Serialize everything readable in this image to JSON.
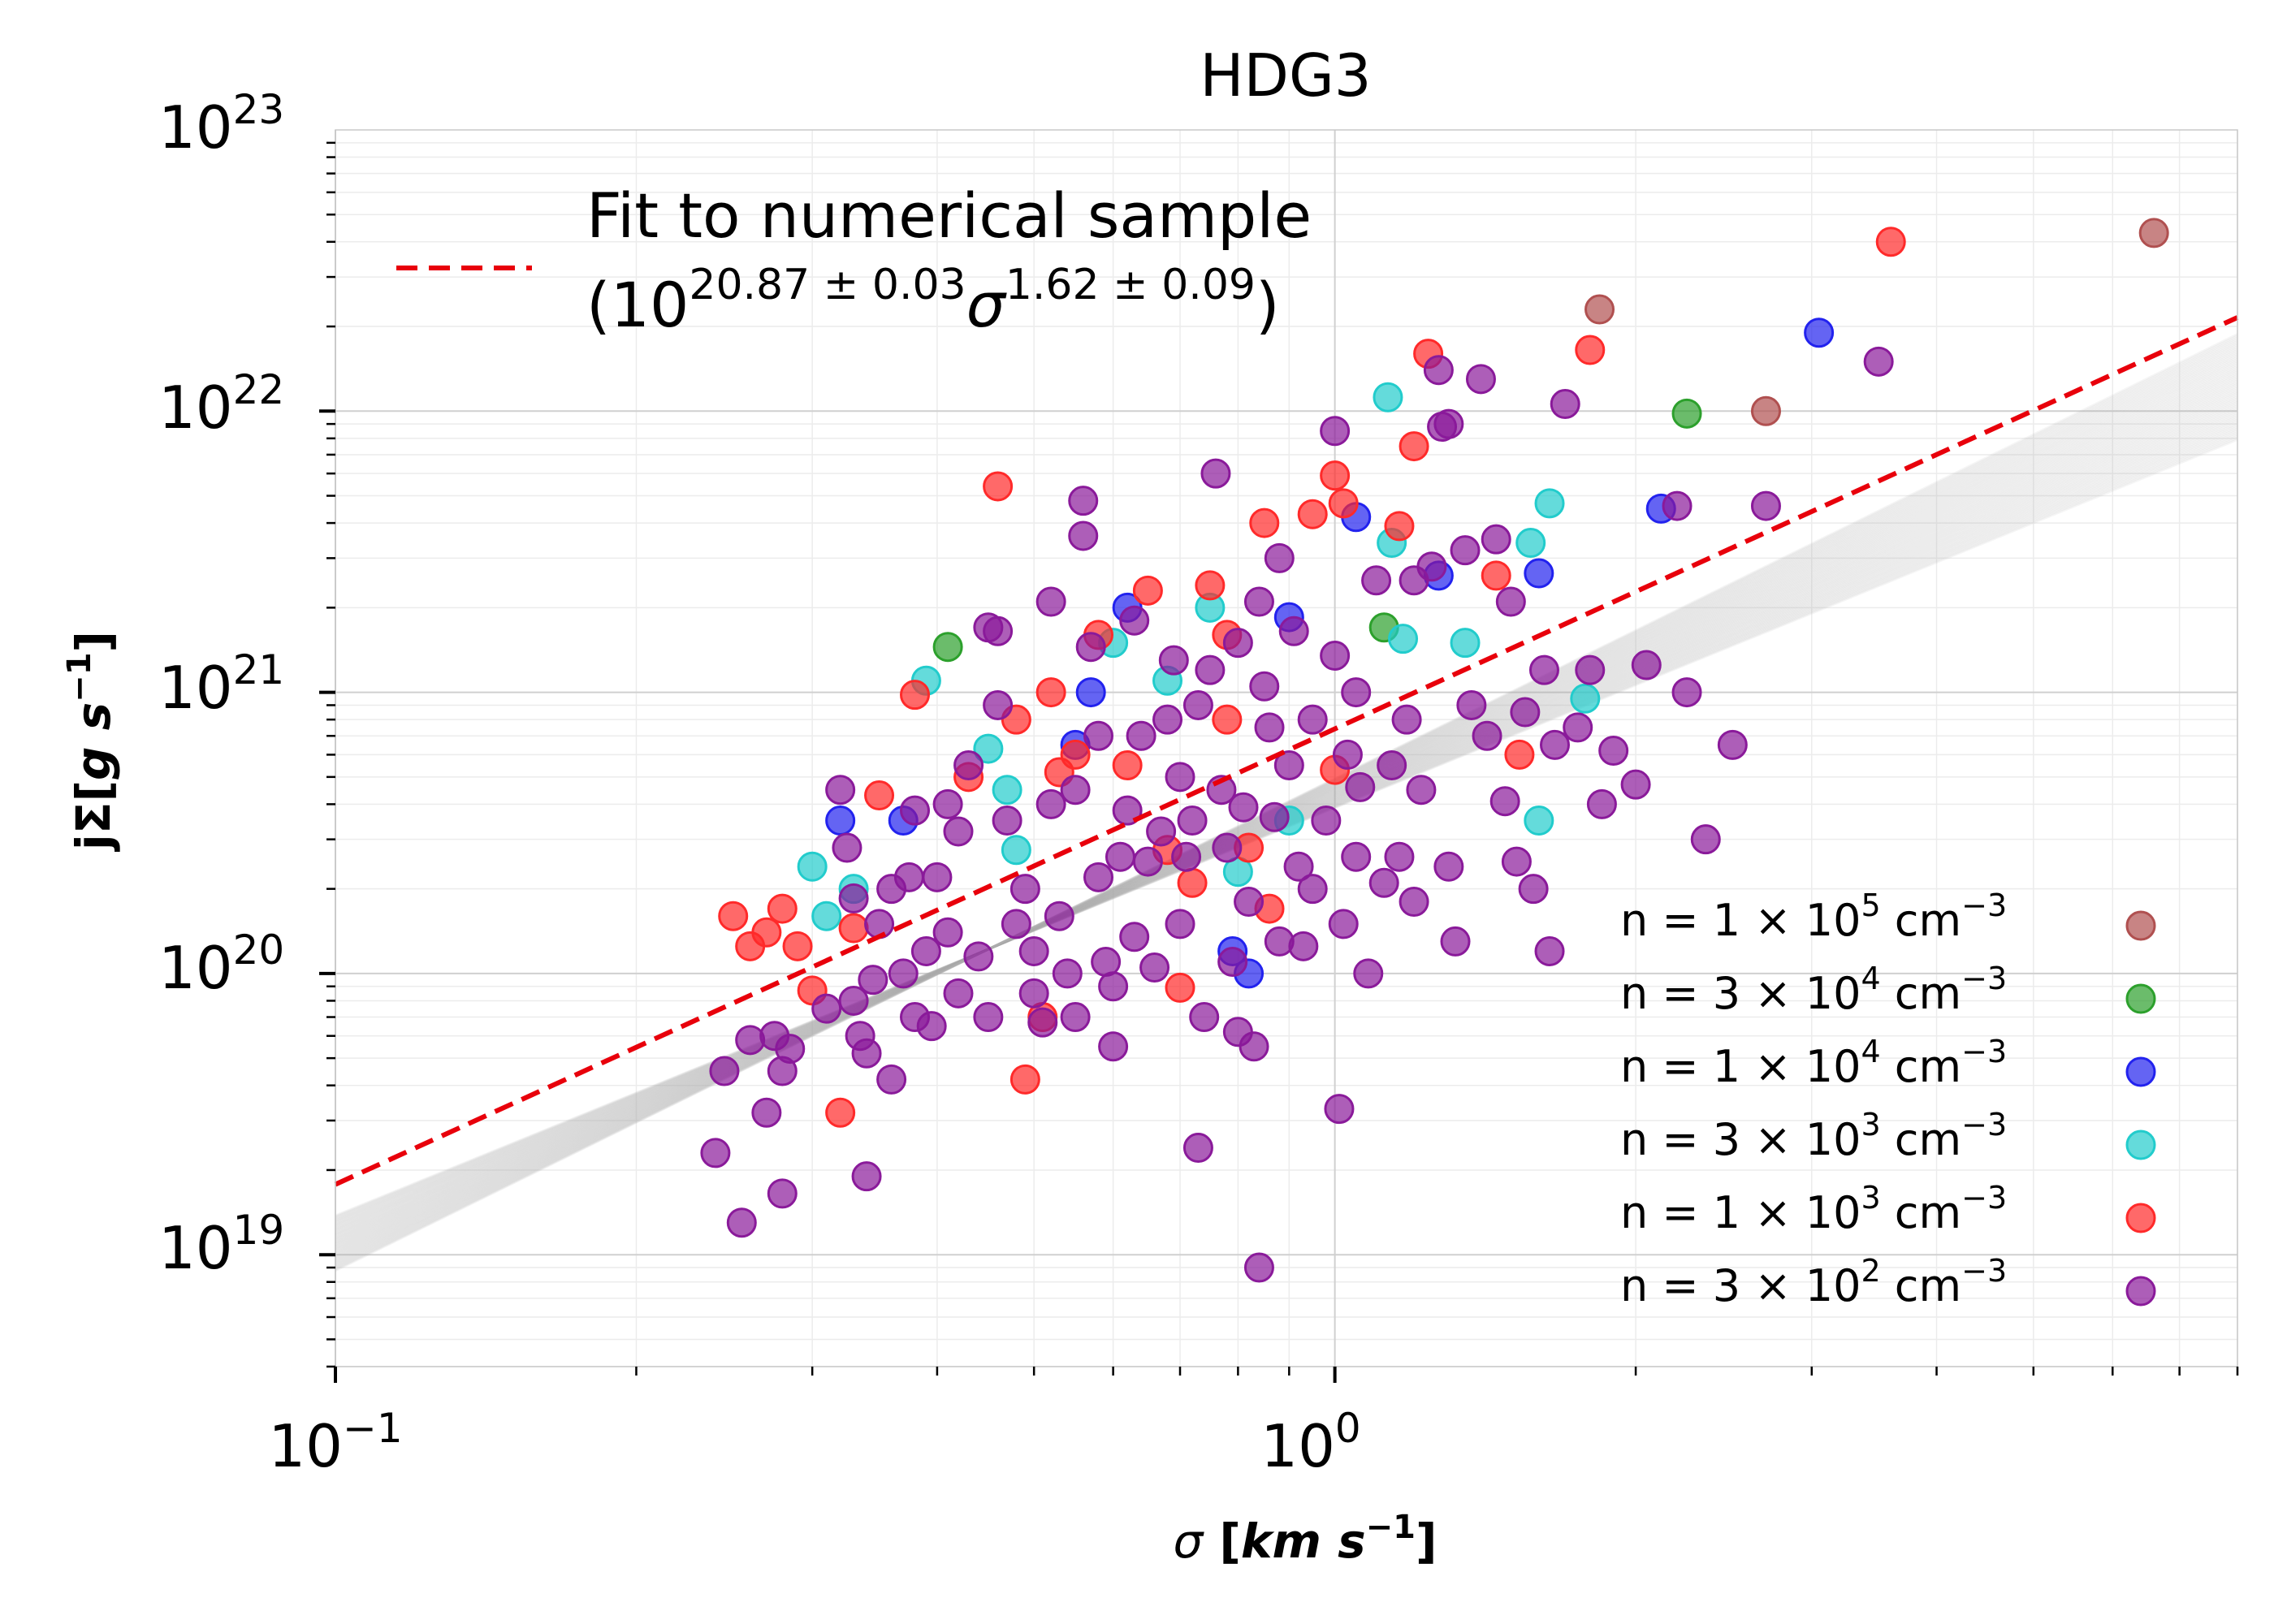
{
  "chart_data": {
    "type": "scatter",
    "title": "HDG3",
    "xlabel": {
      "italic": "σ",
      "bold": " [",
      "unit_a": "km",
      "unit_b": " s",
      "sup": "−1",
      "close": "]"
    },
    "ylabel": {
      "bold": "jΣ[",
      "unit_a": "g",
      "unit_b": " s",
      "sup": "−1",
      "close": "]"
    },
    "x_scale": "log",
    "y_scale": "log",
    "xlim": [
      0.1,
      8.0
    ],
    "ylim": [
      4e+18,
      1e+23
    ],
    "x_ticks": [
      {
        "value": 0.1,
        "base": "10",
        "exp": "−1"
      },
      {
        "value": 1.0,
        "base": "10",
        "exp": "0"
      }
    ],
    "y_ticks": [
      {
        "value": 1e+19,
        "base": "10",
        "exp": "19"
      },
      {
        "value": 1e+20,
        "base": "10",
        "exp": "20"
      },
      {
        "value": 1e+21,
        "base": "10",
        "exp": "21"
      },
      {
        "value": 1e+22,
        "base": "10",
        "exp": "22"
      },
      {
        "value": 1e+23,
        "base": "10",
        "exp": "23"
      }
    ],
    "fit": {
      "label_line1": "Fit to numerical sample",
      "label_open": "(10",
      "label_exp1": "20.87 ± 0.03",
      "label_sigma": "σ",
      "label_exp2": "1.62 ± 0.09",
      "label_close": ")",
      "log_norm": 20.87,
      "slope": 1.62,
      "color": "#e8000b",
      "band_norm": 20.6,
      "band_slopes": [
        1.45,
        1.5,
        1.55,
        1.6,
        1.65,
        1.7,
        1.75
      ],
      "band_color": "#b0b0b0"
    },
    "legend": {
      "placement": "lower-right"
    },
    "series": [
      {
        "name": "n =1×10^5 cm^-3",
        "label_pre": "n  = 1 × 10",
        "label_exp": "5",
        "label_post": " cm",
        "label_unit_exp": "−3",
        "color": "#b05050",
        "points": [
          [
            1.84,
            2.3e+22
          ],
          [
            2.7,
            1e+22
          ],
          [
            6.6,
            4.3e+22
          ]
        ]
      },
      {
        "name": "n =3×10^4 cm^-3",
        "label_pre": "n  = 3 × 10",
        "label_exp": "4",
        "label_post": " cm",
        "label_unit_exp": "−3",
        "color": "#2ca02c",
        "points": [
          [
            0.41,
            1.45e+21
          ],
          [
            1.12,
            1.7e+21
          ],
          [
            2.25,
            9.8e+21
          ]
        ]
      },
      {
        "name": "n =1×10^4 cm^-3",
        "label_pre": "n  = 1 × 10",
        "label_exp": "4",
        "label_post": " cm",
        "label_unit_exp": "−3",
        "color": "#2222ee",
        "points": [
          [
            0.32,
            3.5e+20
          ],
          [
            0.37,
            3.5e+20
          ],
          [
            0.55,
            6.5e+20
          ],
          [
            0.57,
            1e+21
          ],
          [
            0.62,
            2e+21
          ],
          [
            0.9,
            1.85e+21
          ],
          [
            1.05,
            4.2e+21
          ],
          [
            1.27,
            2.6e+21
          ],
          [
            1.6,
            2.65e+21
          ],
          [
            2.12,
            4.5e+21
          ],
          [
            3.05,
            1.9e+22
          ],
          [
            0.82,
            1e+20
          ],
          [
            0.79,
            1.2e+20
          ]
        ]
      },
      {
        "name": "n =3×10^3 cm^-3",
        "label_pre": "n  = 3 × 10",
        "label_exp": "3",
        "label_post": " cm",
        "label_unit_exp": "−3",
        "color": "#22cccc",
        "points": [
          [
            0.3,
            2.4e+20
          ],
          [
            0.31,
            1.6e+20
          ],
          [
            0.39,
            1.1e+21
          ],
          [
            0.45,
            6.3e+20
          ],
          [
            0.47,
            4.5e+20
          ],
          [
            0.48,
            2.75e+20
          ],
          [
            0.6,
            1.5e+21
          ],
          [
            0.68,
            1.1e+21
          ],
          [
            0.75,
            2e+21
          ],
          [
            0.8,
            2.3e+20
          ],
          [
            1.13,
            1.12e+22
          ],
          [
            1.14,
            3.4e+21
          ],
          [
            1.17,
            1.55e+21
          ],
          [
            1.35,
            1.5e+21
          ],
          [
            1.57,
            3.4e+21
          ],
          [
            1.64,
            4.7e+21
          ],
          [
            1.78,
            9.5e+20
          ],
          [
            1.6,
            3.5e+20
          ],
          [
            0.9,
            3.5e+20
          ],
          [
            0.33,
            2e+20
          ]
        ]
      },
      {
        "name": "n =1×10^3 cm^-3",
        "label_pre": "n  = 1 × 10",
        "label_exp": "3",
        "label_post": " cm",
        "label_unit_exp": "−3",
        "color": "#ff2a2a",
        "points": [
          [
            0.25,
            1.6e+20
          ],
          [
            0.26,
            1.25e+20
          ],
          [
            0.27,
            1.4e+20
          ],
          [
            0.28,
            1.7e+20
          ],
          [
            0.29,
            1.25e+20
          ],
          [
            0.3,
            8.7e+19
          ],
          [
            0.32,
            3.2e+19
          ],
          [
            0.33,
            1.45e+20
          ],
          [
            0.35,
            4.3e+20
          ],
          [
            0.38,
            9.8e+20
          ],
          [
            0.43,
            5e+20
          ],
          [
            0.46,
            5.4e+21
          ],
          [
            0.48,
            8e+20
          ],
          [
            0.49,
            4.2e+19
          ],
          [
            0.51,
            7e+19
          ],
          [
            0.52,
            1e+21
          ],
          [
            0.53,
            5.2e+20
          ],
          [
            0.55,
            6e+20
          ],
          [
            0.58,
            1.6e+21
          ],
          [
            0.62,
            5.5e+20
          ],
          [
            0.65,
            2.3e+21
          ],
          [
            0.68,
            2.75e+20
          ],
          [
            0.7,
            8.9e+19
          ],
          [
            0.72,
            2.1e+20
          ],
          [
            0.75,
            2.4e+21
          ],
          [
            0.78,
            8e+20
          ],
          [
            0.78,
            1.6e+21
          ],
          [
            0.82,
            2.8e+20
          ],
          [
            0.85,
            4e+21
          ],
          [
            0.86,
            1.7e+20
          ],
          [
            0.95,
            4.3e+21
          ],
          [
            1.0,
            5.9e+21
          ],
          [
            1.02,
            4.7e+21
          ],
          [
            1.0,
            5.3e+20
          ],
          [
            1.16,
            3.9e+21
          ],
          [
            1.2,
            7.5e+21
          ],
          [
            1.24,
            1.6e+22
          ],
          [
            1.45,
            2.6e+21
          ],
          [
            1.53,
            6e+20
          ],
          [
            1.8,
            1.65e+22
          ],
          [
            3.6,
            4e+22
          ]
        ]
      },
      {
        "name": "n =3×10^2 cm^-3",
        "label_pre": "n  = 3 × 10",
        "label_exp": "2",
        "label_post": " cm",
        "label_unit_exp": "−3",
        "color": "#8a1a9a",
        "points": [
          [
            0.24,
            2.3e+19
          ],
          [
            0.245,
            4.5e+19
          ],
          [
            0.255,
            1.3e+19
          ],
          [
            0.26,
            5.8e+19
          ],
          [
            0.27,
            3.2e+19
          ],
          [
            0.275,
            6e+19
          ],
          [
            0.28,
            4.5e+19
          ],
          [
            0.28,
            1.65e+19
          ],
          [
            0.285,
            5.4e+19
          ],
          [
            0.31,
            7.5e+19
          ],
          [
            0.32,
            4.5e+20
          ],
          [
            0.325,
            2.8e+20
          ],
          [
            0.33,
            1.85e+20
          ],
          [
            0.33,
            8e+19
          ],
          [
            0.335,
            6e+19
          ],
          [
            0.34,
            5.2e+19
          ],
          [
            0.34,
            1.9e+19
          ],
          [
            0.345,
            9.5e+19
          ],
          [
            0.35,
            1.5e+20
          ],
          [
            0.36,
            2e+20
          ],
          [
            0.36,
            4.2e+19
          ],
          [
            0.37,
            1e+20
          ],
          [
            0.375,
            2.2e+20
          ],
          [
            0.38,
            7e+19
          ],
          [
            0.38,
            3.8e+20
          ],
          [
            0.39,
            1.2e+20
          ],
          [
            0.395,
            6.5e+19
          ],
          [
            0.4,
            2.2e+20
          ],
          [
            0.41,
            4e+20
          ],
          [
            0.41,
            1.4e+20
          ],
          [
            0.42,
            3.2e+20
          ],
          [
            0.42,
            8.5e+19
          ],
          [
            0.43,
            5.5e+20
          ],
          [
            0.44,
            1.15e+20
          ],
          [
            0.45,
            1.7e+21
          ],
          [
            0.45,
            7e+19
          ],
          [
            0.46,
            1.65e+21
          ],
          [
            0.46,
            9e+20
          ],
          [
            0.47,
            3.5e+20
          ],
          [
            0.48,
            1.5e+20
          ],
          [
            0.49,
            2e+20
          ],
          [
            0.5,
            1.2e+20
          ],
          [
            0.5,
            8.5e+19
          ],
          [
            0.51,
            6.7e+19
          ],
          [
            0.52,
            2.1e+21
          ],
          [
            0.52,
            4e+20
          ],
          [
            0.53,
            1.6e+20
          ],
          [
            0.54,
            1e+20
          ],
          [
            0.55,
            7e+19
          ],
          [
            0.55,
            4.5e+20
          ],
          [
            0.56,
            3.6e+21
          ],
          [
            0.56,
            4.8e+21
          ],
          [
            0.57,
            1.45e+21
          ],
          [
            0.58,
            7e+20
          ],
          [
            0.58,
            2.2e+20
          ],
          [
            0.59,
            1.1e+20
          ],
          [
            0.6,
            9e+19
          ],
          [
            0.6,
            5.5e+19
          ],
          [
            0.61,
            2.6e+20
          ],
          [
            0.62,
            3.8e+20
          ],
          [
            0.63,
            1.8e+21
          ],
          [
            0.63,
            1.35e+20
          ],
          [
            0.64,
            7e+20
          ],
          [
            0.65,
            2.5e+20
          ],
          [
            0.66,
            1.05e+20
          ],
          [
            0.67,
            3.2e+20
          ],
          [
            0.68,
            8e+20
          ],
          [
            0.69,
            1.3e+21
          ],
          [
            0.7,
            5e+20
          ],
          [
            0.7,
            1.5e+20
          ],
          [
            0.71,
            2.6e+20
          ],
          [
            0.72,
            3.5e+20
          ],
          [
            0.73,
            9e+20
          ],
          [
            0.73,
            2.4e+19
          ],
          [
            0.74,
            7e+19
          ],
          [
            0.75,
            1.2e+21
          ],
          [
            0.76,
            6e+21
          ],
          [
            0.77,
            4.5e+20
          ],
          [
            0.78,
            2.8e+20
          ],
          [
            0.79,
            1.1e+20
          ],
          [
            0.8,
            1.5e+21
          ],
          [
            0.8,
            6.2e+19
          ],
          [
            0.81,
            3.9e+20
          ],
          [
            0.82,
            1.8e+20
          ],
          [
            0.83,
            5.5e+19
          ],
          [
            0.84,
            2.1e+21
          ],
          [
            0.84,
            9e+18
          ],
          [
            0.85,
            1.05e+21
          ],
          [
            0.86,
            7.5e+20
          ],
          [
            0.87,
            3.6e+20
          ],
          [
            0.88,
            1.3e+20
          ],
          [
            0.88,
            3e+21
          ],
          [
            0.9,
            5.5e+20
          ],
          [
            0.91,
            1.65e+21
          ],
          [
            0.92,
            2.4e+20
          ],
          [
            0.93,
            1.25e+20
          ],
          [
            0.95,
            8e+20
          ],
          [
            0.98,
            3.5e+20
          ],
          [
            1.0,
            8.5e+21
          ],
          [
            1.0,
            1.35e+21
          ],
          [
            1.01,
            3.3e+19
          ],
          [
            1.02,
            1.5e+20
          ],
          [
            1.03,
            6e+20
          ],
          [
            1.05,
            1e+21
          ],
          [
            1.06,
            4.6e+20
          ],
          [
            1.08,
            1e+20
          ],
          [
            1.1,
            2.5e+21
          ],
          [
            1.12,
            2.1e+20
          ],
          [
            1.14,
            5.5e+20
          ],
          [
            1.16,
            2.6e+20
          ],
          [
            1.18,
            8e+20
          ],
          [
            1.2,
            1.8e+20
          ],
          [
            1.22,
            4.5e+20
          ],
          [
            1.25,
            2.8e+21
          ],
          [
            1.27,
            1.4e+22
          ],
          [
            1.28,
            8.8e+21
          ],
          [
            1.3,
            2.4e+20
          ],
          [
            1.32,
            1.3e+20
          ],
          [
            1.35,
            3.2e+21
          ],
          [
            1.37,
            9e+20
          ],
          [
            1.4,
            1.3e+22
          ],
          [
            1.42,
            7e+20
          ],
          [
            1.45,
            3.5e+21
          ],
          [
            1.48,
            4.1e+20
          ],
          [
            1.5,
            2.1e+21
          ],
          [
            1.52,
            2.5e+20
          ],
          [
            1.55,
            8.5e+20
          ],
          [
            1.58,
            2e+20
          ],
          [
            1.62,
            1.2e+21
          ],
          [
            1.64,
            1.2e+20
          ],
          [
            1.66,
            6.5e+20
          ],
          [
            1.7,
            1.06e+22
          ],
          [
            1.75,
            7.5e+20
          ],
          [
            1.8,
            1.2e+21
          ],
          [
            1.85,
            4e+20
          ],
          [
            1.9,
            6.2e+20
          ],
          [
            2.0,
            4.7e+20
          ],
          [
            2.05,
            1.25e+21
          ],
          [
            2.2,
            4.6e+21
          ],
          [
            2.25,
            1e+21
          ],
          [
            2.35,
            3e+20
          ],
          [
            2.5,
            6.5e+20
          ],
          [
            2.7,
            4.6e+21
          ],
          [
            3.5,
            1.5e+22
          ],
          [
            1.3,
            9e+21
          ],
          [
            1.2,
            2.5e+21
          ],
          [
            0.95,
            2e+20
          ],
          [
            1.05,
            2.6e+20
          ]
        ]
      }
    ]
  }
}
